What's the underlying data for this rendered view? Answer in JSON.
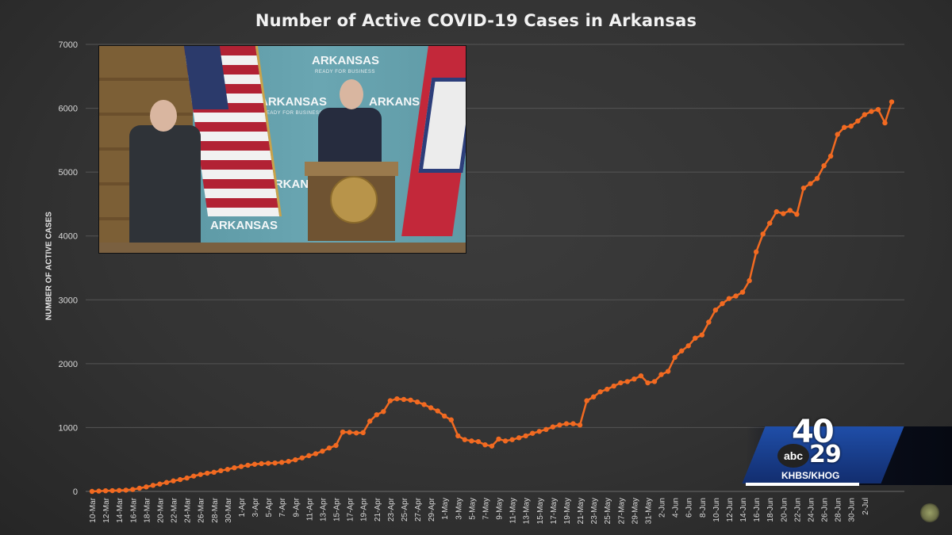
{
  "chart_data": {
    "type": "line",
    "title": "Number of Active COVID-19 Cases in Arkansas",
    "xlabel": "",
    "ylabel": "NUMBER OF ACTIVE CASES",
    "ylim": [
      0,
      7000
    ],
    "yticks": [
      0,
      1000,
      2000,
      3000,
      4000,
      5000,
      6000,
      7000
    ],
    "grid": true,
    "legend": null,
    "line_color": "#f26a21",
    "x_tick_labels": [
      "10-Mar",
      "12-Mar",
      "14-Mar",
      "16-Mar",
      "18-Mar",
      "20-Mar",
      "22-Mar",
      "24-Mar",
      "26-Mar",
      "28-Mar",
      "30-Mar",
      "1-Apr",
      "3-Apr",
      "5-Apr",
      "7-Apr",
      "9-Apr",
      "11-Apr",
      "13-Apr",
      "15-Apr",
      "17-Apr",
      "19-Apr",
      "21-Apr",
      "23-Apr",
      "25-Apr",
      "27-Apr",
      "29-Apr",
      "1-May",
      "3-May",
      "5-May",
      "7-May",
      "9-May",
      "11-May",
      "13-May",
      "15-May",
      "17-May",
      "19-May",
      "21-May",
      "23-May",
      "25-May",
      "27-May",
      "29-May",
      "31-May",
      "2-Jun",
      "4-Jun",
      "6-Jun",
      "8-Jun",
      "10-Jun",
      "12-Jun",
      "14-Jun",
      "16-Jun",
      "18-Jun",
      "20-Jun",
      "22-Jun",
      "24-Jun",
      "26-Jun",
      "28-Jun",
      "30-Jun",
      "2-Jul"
    ],
    "x_start": "10-Mar",
    "x_end": "2-Jul",
    "series": [
      {
        "name": "Active cases",
        "values": [
          0,
          5,
          10,
          12,
          15,
          20,
          30,
          50,
          70,
          95,
          115,
          140,
          165,
          185,
          210,
          240,
          265,
          285,
          300,
          325,
          345,
          370,
          390,
          410,
          425,
          435,
          440,
          445,
          455,
          470,
          495,
          525,
          560,
          590,
          630,
          680,
          720,
          930,
          925,
          915,
          920,
          1100,
          1200,
          1250,
          1420,
          1450,
          1440,
          1430,
          1400,
          1360,
          1310,
          1260,
          1180,
          1120,
          870,
          810,
          790,
          780,
          730,
          710,
          820,
          790,
          810,
          840,
          870,
          910,
          940,
          970,
          1010,
          1040,
          1060,
          1060,
          1040,
          1420,
          1480,
          1560,
          1600,
          1650,
          1700,
          1720,
          1760,
          1810,
          1700,
          1720,
          1830,
          1880,
          2100,
          2200,
          2280,
          2400,
          2450,
          2650,
          2840,
          2940,
          3020,
          3060,
          3120,
          3300,
          3750,
          4030,
          4200,
          4380,
          4350,
          4400,
          4340,
          4750,
          4820,
          4900,
          5100,
          5250,
          5590,
          5700,
          5720,
          5800,
          5900,
          5950,
          5980,
          5770,
          6100
        ]
      }
    ]
  },
  "overlay": {
    "backdrop_word": "ARKANSAS",
    "backdrop_sub": "READY FOR BUSINESS",
    "station": {
      "channel_top": "40",
      "channel_bottom": "29",
      "network": "abc",
      "call_letters": "KHBS/KHOG"
    }
  }
}
